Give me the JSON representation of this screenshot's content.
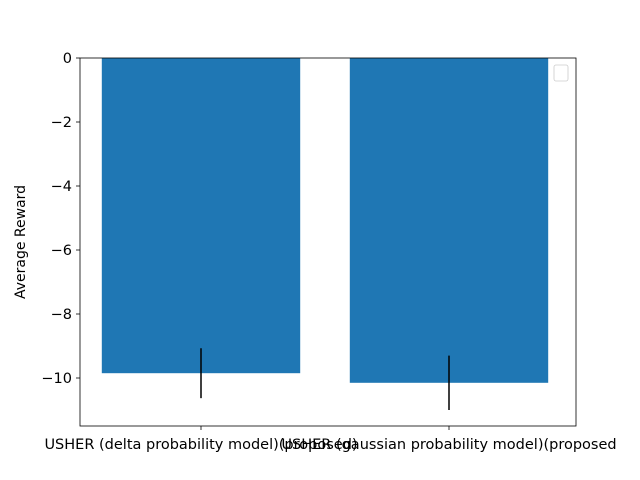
{
  "chart_data": {
    "type": "bar",
    "title": "",
    "xlabel": "",
    "ylabel": "Average Reward",
    "categories": [
      "USHER (delta probability model)(proposed)",
      "USHER (gaussian probability model)(proposed"
    ],
    "values": [
      -9.85,
      -10.15
    ],
    "errors": [
      0.78,
      0.85
    ],
    "ylim": [
      -11.5,
      0
    ],
    "yticks": [
      0,
      -2,
      -4,
      -6,
      -8,
      -10
    ],
    "ytick_labels": [
      "0",
      "−2",
      "−4",
      "−6",
      "−8",
      "−10"
    ],
    "grid": false,
    "legend": {
      "placement": "top-right",
      "entries": []
    },
    "bar_color": "#1f77b4",
    "error_color": "#000000"
  }
}
